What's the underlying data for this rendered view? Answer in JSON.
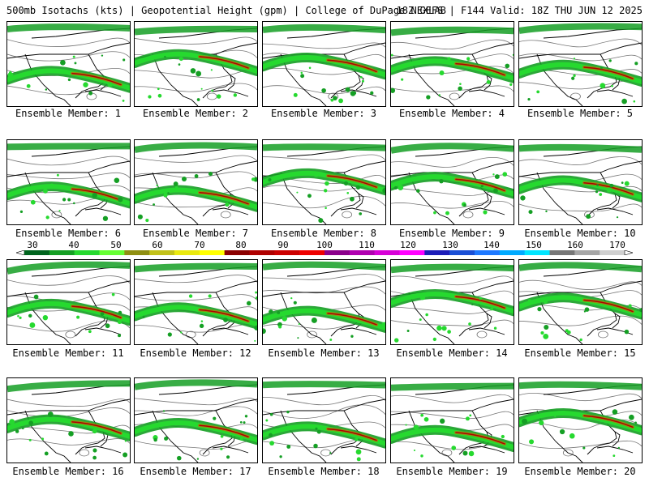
{
  "header": {
    "left": "500mb Isotachs (kts) | Geopotential Height (gpm) | College of DuPage NEXLAB",
    "right": "18Z GEFS | F144 Valid: 18Z THU JUN 12 2025"
  },
  "members": [
    "Ensemble Member: 1",
    "Ensemble Member: 2",
    "Ensemble Member: 3",
    "Ensemble Member: 4",
    "Ensemble Member: 5",
    "Ensemble Member: 6",
    "Ensemble Member: 7",
    "Ensemble Member: 8",
    "Ensemble Member: 9",
    "Ensemble Member: 10",
    "Ensemble Member: 11",
    "Ensemble Member: 12",
    "Ensemble Member: 13",
    "Ensemble Member: 14",
    "Ensemble Member: 15",
    "Ensemble Member: 16",
    "Ensemble Member: 17",
    "Ensemble Member: 18",
    "Ensemble Member: 19",
    "Ensemble Member: 20"
  ],
  "colorbar": {
    "labels": [
      "30",
      "40",
      "50",
      "60",
      "70",
      "80",
      "90",
      "100",
      "110",
      "120",
      "130",
      "140",
      "150",
      "160",
      "170"
    ],
    "colors": [
      "#00641e",
      "#159f24",
      "#26d92f",
      "#66ff33",
      "#8f8f12",
      "#c2c21a",
      "#e9e90f",
      "#ffff00",
      "#8b0000",
      "#b00000",
      "#cc0000",
      "#ee0000",
      "#8b008b",
      "#b000b0",
      "#d700d7",
      "#ff00ff",
      "#1c1cb8",
      "#1a4fd6",
      "#1e78ff",
      "#00aaff",
      "#00e5ff",
      "#767676",
      "#a6a6a6",
      "#d0d0d0"
    ]
  }
}
